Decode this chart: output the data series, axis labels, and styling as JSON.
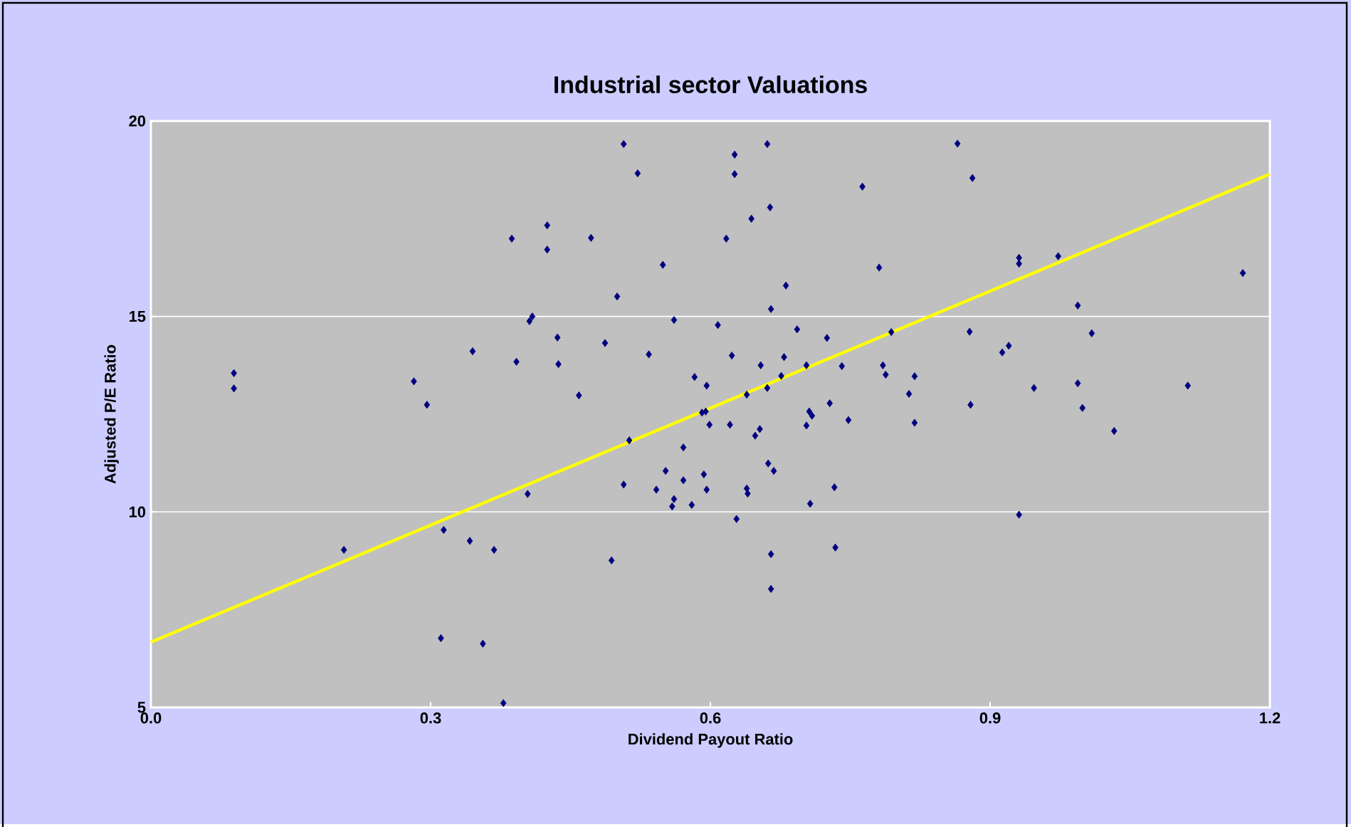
{
  "chart_data": {
    "type": "scatter",
    "title": "Industrial sector Valuations",
    "xlabel": "Dividend Payout Ratio",
    "ylabel": "Adjusted P/E Ratio",
    "xlim": [
      0,
      1.2
    ],
    "ylim": [
      5,
      20
    ],
    "xticks": [
      {
        "value": 0,
        "label": "0.0"
      },
      0.3,
      0.6,
      0.9,
      1.2
    ],
    "yticks": [
      5,
      10,
      15,
      20
    ],
    "grid": "y",
    "marker": "diamond",
    "series": [
      {
        "color": "#000080",
        "x": [
          0.089,
          0.089,
          0.207,
          0.282,
          0.296,
          0.314,
          0.311,
          0.342,
          0.345,
          0.356,
          0.368,
          0.378,
          0.387,
          0.392,
          0.404,
          0.406,
          0.409,
          0.425,
          0.425,
          0.436,
          0.437,
          0.507,
          0.522,
          0.472,
          0.549,
          0.5,
          0.561,
          0.608,
          0.487,
          0.534,
          0.459,
          0.623,
          0.626,
          0.626,
          0.661,
          0.664,
          0.644,
          0.617,
          0.763,
          0.781,
          0.681,
          0.665,
          0.693,
          0.725,
          0.679,
          0.654,
          0.703,
          0.741,
          0.794,
          0.785,
          0.788,
          0.819,
          0.813,
          0.819,
          0.583,
          0.596,
          0.676,
          0.661,
          0.639,
          0.591,
          0.595,
          0.599,
          0.621,
          0.706,
          0.709,
          0.703,
          0.728,
          0.748,
          0.653,
          0.648,
          0.513,
          0.571,
          0.662,
          0.668,
          0.552,
          0.593,
          0.507,
          0.571,
          0.542,
          0.596,
          0.639,
          0.64,
          0.561,
          0.559,
          0.58,
          0.707,
          0.733,
          0.628,
          0.494,
          0.665,
          0.734,
          0.665,
          0.865,
          0.881,
          0.931,
          0.931,
          0.973,
          1.171,
          0.994,
          0.878,
          1.009,
          0.92,
          0.913,
          0.947,
          0.994,
          1.112,
          0.879,
          0.999,
          1.033,
          0.931
        ],
        "values": [
          13.55,
          13.16,
          9.03,
          13.34,
          12.74,
          9.54,
          6.77,
          9.26,
          14.11,
          6.63,
          9.03,
          5.11,
          16.99,
          13.84,
          10.46,
          14.88,
          15.0,
          17.33,
          16.71,
          14.46,
          13.78,
          19.41,
          18.66,
          17.01,
          16.32,
          15.51,
          14.91,
          14.78,
          14.32,
          14.03,
          12.98,
          14.0,
          19.14,
          18.64,
          19.41,
          17.79,
          17.5,
          16.99,
          18.32,
          16.25,
          15.79,
          15.19,
          14.67,
          14.45,
          13.96,
          13.75,
          13.75,
          13.73,
          14.6,
          13.75,
          13.51,
          13.47,
          13.02,
          12.28,
          13.45,
          13.23,
          13.48,
          13.17,
          13.0,
          12.54,
          12.57,
          12.23,
          12.23,
          12.57,
          12.46,
          12.21,
          12.78,
          12.35,
          12.12,
          11.95,
          11.83,
          11.65,
          11.24,
          11.05,
          11.05,
          10.96,
          10.7,
          10.81,
          10.57,
          10.57,
          10.6,
          10.47,
          10.33,
          10.14,
          10.18,
          10.21,
          10.63,
          9.82,
          8.76,
          8.92,
          9.09,
          8.03,
          19.42,
          18.54,
          16.5,
          16.35,
          16.54,
          16.11,
          15.28,
          14.61,
          14.57,
          14.25,
          14.08,
          13.17,
          13.29,
          13.23,
          12.74,
          12.66,
          12.07,
          9.93
        ]
      },
      {
        "type": "line",
        "color": "#ffff00",
        "marker": "none",
        "x": [
          0,
          1.2
        ],
        "values": [
          6.67,
          18.64
        ]
      }
    ]
  }
}
